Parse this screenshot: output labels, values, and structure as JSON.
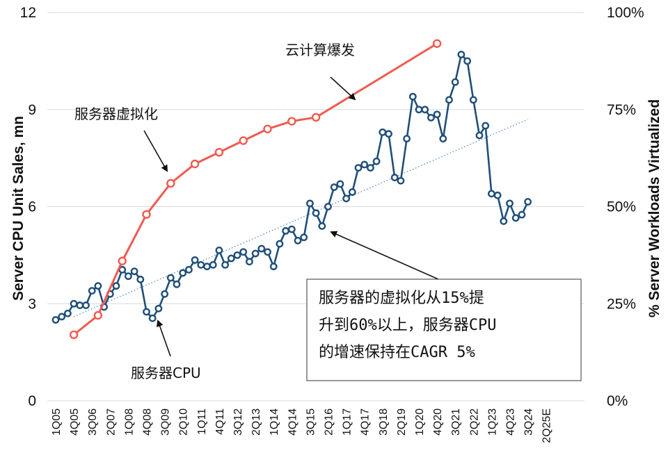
{
  "chart_data": {
    "type": "line",
    "y_left": {
      "label": "Server CPU Unit Sales, mn",
      "range": [
        0,
        12
      ],
      "ticks": [
        "0",
        "3",
        "6",
        "9",
        "12"
      ]
    },
    "y_right": {
      "label": "% Server Workloads Virtualized",
      "range": [
        0,
        100
      ],
      "ticks": [
        "0%",
        "25%",
        "50%",
        "75%",
        "100%"
      ]
    },
    "x_tick_labels": [
      "1Q05",
      "4Q05",
      "3Q06",
      "2Q07",
      "1Q08",
      "4Q08",
      "3Q09",
      "2Q10",
      "1Q11",
      "4Q11",
      "3Q12",
      "2Q13",
      "1Q14",
      "4Q14",
      "3Q15",
      "2Q16",
      "1Q17",
      "4Q17",
      "3Q18",
      "2Q19",
      "1Q20",
      "4Q20",
      "3Q21",
      "2Q22",
      "1Q23",
      "4Q23",
      "3Q24",
      "2Q25E"
    ],
    "series": [
      {
        "name": "服务器CPU",
        "axis": "left",
        "color": "#1f4e79",
        "x": [
          "1Q05",
          "2Q05",
          "3Q05",
          "4Q05",
          "1Q06",
          "2Q06",
          "3Q06",
          "4Q06",
          "1Q07",
          "2Q07",
          "3Q07",
          "4Q07",
          "1Q08",
          "2Q08",
          "3Q08",
          "4Q08",
          "1Q09",
          "2Q09",
          "3Q09",
          "4Q09",
          "1Q10",
          "2Q10",
          "3Q10",
          "4Q10",
          "1Q11",
          "2Q11",
          "3Q11",
          "4Q11",
          "1Q12",
          "2Q12",
          "3Q12",
          "4Q12",
          "1Q13",
          "2Q13",
          "3Q13",
          "4Q13",
          "1Q14",
          "2Q14",
          "3Q14",
          "4Q14",
          "1Q15",
          "2Q15",
          "3Q15",
          "4Q15",
          "1Q16",
          "2Q16",
          "3Q16",
          "4Q16",
          "1Q17",
          "2Q17",
          "3Q17",
          "4Q17",
          "1Q18",
          "2Q18",
          "3Q18",
          "4Q18",
          "1Q19",
          "2Q19",
          "3Q19",
          "4Q19",
          "1Q20",
          "2Q20",
          "3Q20",
          "4Q20",
          "1Q21",
          "2Q21",
          "3Q21",
          "4Q21",
          "1Q22",
          "2Q22",
          "3Q22",
          "4Q22",
          "1Q23",
          "2Q23",
          "3Q23",
          "4Q23",
          "1Q24",
          "2Q24",
          "3Q24"
        ],
        "values": [
          2.5,
          2.6,
          2.7,
          3.0,
          2.95,
          2.95,
          3.4,
          3.55,
          2.9,
          3.3,
          3.55,
          4.05,
          3.85,
          4.0,
          3.75,
          2.75,
          2.55,
          2.85,
          3.3,
          3.8,
          3.6,
          3.95,
          4.05,
          4.35,
          4.2,
          4.15,
          4.2,
          4.65,
          4.2,
          4.4,
          4.5,
          4.6,
          4.3,
          4.55,
          4.7,
          4.6,
          4.15,
          4.85,
          5.25,
          5.3,
          4.95,
          5.05,
          6.1,
          5.8,
          5.4,
          6.0,
          6.6,
          6.7,
          6.25,
          6.45,
          7.2,
          7.3,
          7.2,
          7.4,
          8.3,
          8.25,
          6.9,
          6.8,
          8.1,
          9.4,
          9.0,
          9.0,
          8.75,
          8.85,
          8.1,
          9.3,
          9.85,
          10.7,
          10.5,
          9.3,
          8.2,
          8.5,
          6.4,
          6.35,
          5.55,
          6.1,
          5.65,
          5.75,
          6.15
        ]
      },
      {
        "name": "服务器虚拟化",
        "axis": "right",
        "color": "#f05a4f",
        "x": [
          "4Q05",
          "4Q06",
          "4Q07",
          "4Q08",
          "4Q09",
          "4Q10",
          "4Q11",
          "4Q12",
          "4Q13",
          "4Q14",
          "4Q15",
          "4Q20"
        ],
        "values": [
          17,
          22,
          36,
          48,
          56,
          61,
          64,
          67,
          70,
          72,
          73,
          92
        ]
      }
    ],
    "trendline": {
      "axis": "left",
      "from": [
        "4Q05",
        2.6
      ],
      "to": [
        "3Q24",
        8.7
      ],
      "style": "dotted"
    },
    "annotations": {
      "cloud": "云计算爆发",
      "virtualization": "服务器虚拟化",
      "cpu": "服务器CPU",
      "box_lines": [
        "服务器的虚拟化从15%提",
        "升到60%以上，服务器CPU",
        "的增速保持在CAGR 5%"
      ]
    }
  }
}
